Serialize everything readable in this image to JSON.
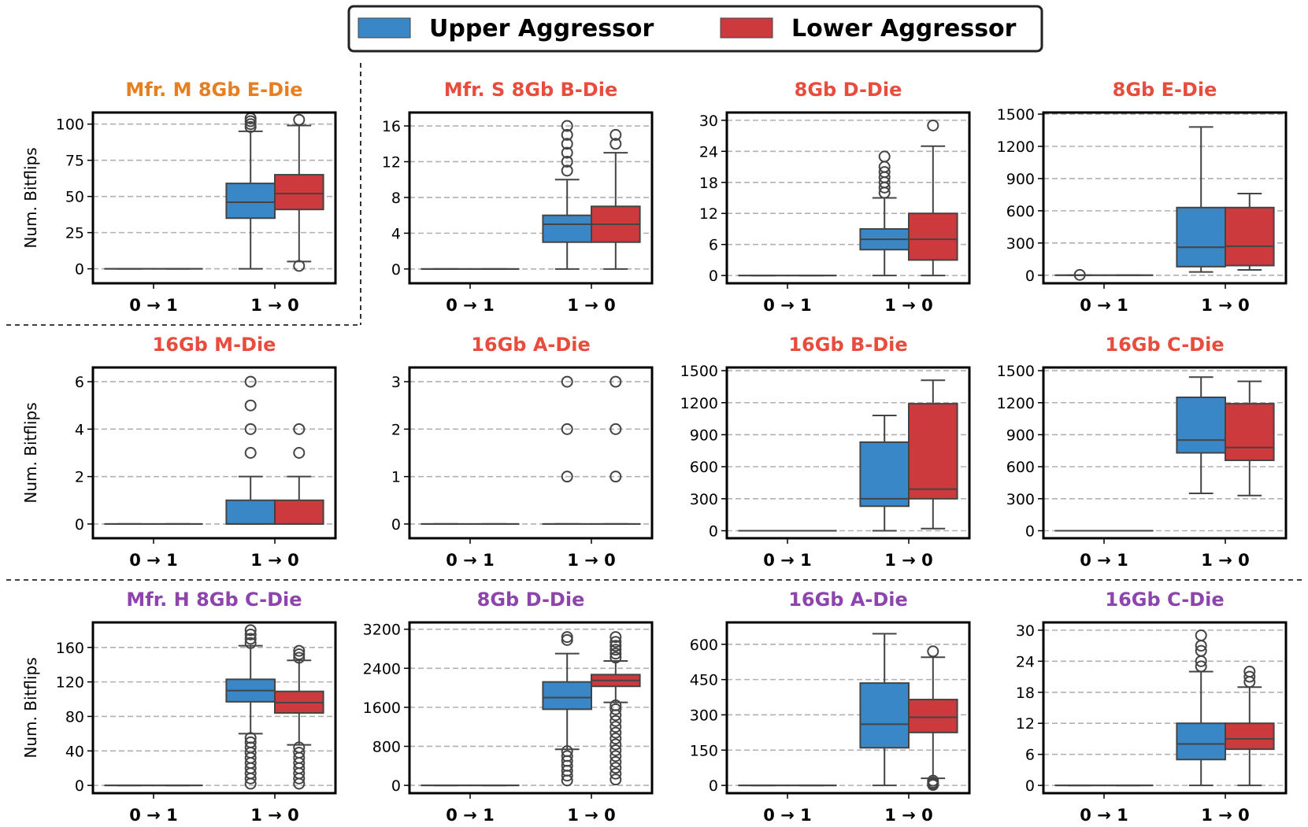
{
  "chart_data": [
    {
      "type": "box",
      "title": "Mfr. M 8Gb E-Die",
      "title_color": "#e67e22",
      "ylabel": "Num. Bitflips",
      "ylim": [
        -10,
        108
      ],
      "yticks": [
        0,
        25,
        50,
        75,
        100
      ],
      "categories": [
        "0 → 1",
        "1 → 0"
      ],
      "series": [
        {
          "name": "Upper Aggressor",
          "boxes": [
            {
              "min": 0,
              "q1": 0,
              "median": 0,
              "q3": 0,
              "max": 0,
              "outliers": []
            },
            {
              "min": 0,
              "q1": 35,
              "median": 46,
              "q3": 59,
              "max": 95,
              "outliers": [
                98,
                100,
                102,
                104
              ]
            }
          ]
        },
        {
          "name": "Lower Aggressor",
          "boxes": [
            {
              "min": 0,
              "q1": 0,
              "median": 0,
              "q3": 0,
              "max": 0,
              "outliers": []
            },
            {
              "min": 5,
              "q1": 41,
              "median": 52,
              "q3": 65,
              "max": 99,
              "outliers": [
                2,
                103
              ]
            }
          ]
        }
      ]
    },
    {
      "type": "box",
      "title": "Mfr. S 8Gb B-Die",
      "title_color": "#e74c3c",
      "ylabel": "",
      "ylim": [
        -1.6,
        17.5
      ],
      "yticks": [
        0,
        4,
        8,
        12,
        16
      ],
      "categories": [
        "0 → 1",
        "1 → 0"
      ],
      "series": [
        {
          "name": "Upper Aggressor",
          "boxes": [
            {
              "min": 0,
              "q1": 0,
              "median": 0,
              "q3": 0,
              "max": 0,
              "outliers": []
            },
            {
              "min": 0,
              "q1": 3,
              "median": 5,
              "q3": 6,
              "max": 10,
              "outliers": [
                11,
                12,
                13,
                14,
                15,
                16
              ]
            }
          ]
        },
        {
          "name": "Lower Aggressor",
          "boxes": [
            {
              "min": 0,
              "q1": 0,
              "median": 0,
              "q3": 0,
              "max": 0,
              "outliers": []
            },
            {
              "min": 0,
              "q1": 3,
              "median": 5,
              "q3": 7,
              "max": 13,
              "outliers": [
                14,
                15
              ]
            }
          ]
        }
      ]
    },
    {
      "type": "box",
      "title": "8Gb D-Die",
      "title_color": "#e74c3c",
      "ylabel": "",
      "ylim": [
        -1.5,
        31.5
      ],
      "yticks": [
        0,
        6,
        12,
        18,
        24,
        30
      ],
      "categories": [
        "0 → 1",
        "1 → 0"
      ],
      "series": [
        {
          "name": "Upper Aggressor",
          "boxes": [
            {
              "min": 0,
              "q1": 0,
              "median": 0,
              "q3": 0,
              "max": 0,
              "outliers": []
            },
            {
              "min": 0,
              "q1": 5,
              "median": 7,
              "q3": 9,
              "max": 15,
              "outliers": [
                16,
                17,
                18,
                19,
                20,
                21,
                23
              ]
            }
          ]
        },
        {
          "name": "Lower Aggressor",
          "boxes": [
            {
              "min": 0,
              "q1": 0,
              "median": 0,
              "q3": 0,
              "max": 0,
              "outliers": []
            },
            {
              "min": 0,
              "q1": 3,
              "median": 7,
              "q3": 12,
              "max": 25,
              "outliers": [
                29
              ]
            }
          ]
        }
      ]
    },
    {
      "type": "box",
      "title": "8Gb E-Die",
      "title_color": "#e74c3c",
      "ylabel": "",
      "ylim": [
        -75,
        1515
      ],
      "yticks": [
        0,
        300,
        600,
        900,
        1200,
        1500
      ],
      "categories": [
        "0 → 1",
        "1 → 0"
      ],
      "series": [
        {
          "name": "Upper Aggressor",
          "boxes": [
            {
              "min": 0,
              "q1": 0,
              "median": 0,
              "q3": 0,
              "max": 0,
              "outliers": [
                3
              ]
            },
            {
              "min": 30,
              "q1": 80,
              "median": 260,
              "q3": 630,
              "max": 1380,
              "outliers": []
            }
          ]
        },
        {
          "name": "Lower Aggressor",
          "boxes": [
            {
              "min": 0,
              "q1": 0,
              "median": 0,
              "q3": 0,
              "max": 0,
              "outliers": []
            },
            {
              "min": 50,
              "q1": 90,
              "median": 270,
              "q3": 630,
              "max": 760,
              "outliers": []
            }
          ]
        }
      ]
    },
    {
      "type": "box",
      "title": "16Gb M-Die",
      "title_color": "#e74c3c",
      "ylabel": "Num. Bitflips",
      "ylim": [
        -0.6,
        6.6
      ],
      "yticks": [
        0,
        2,
        4,
        6
      ],
      "categories": [
        "0 → 1",
        "1 → 0"
      ],
      "series": [
        {
          "name": "Upper Aggressor",
          "boxes": [
            {
              "min": 0,
              "q1": 0,
              "median": 0,
              "q3": 0,
              "max": 0,
              "outliers": []
            },
            {
              "min": 0,
              "q1": 0,
              "median": 0,
              "q3": 1,
              "max": 2,
              "outliers": [
                3,
                4,
                5,
                6
              ]
            }
          ]
        },
        {
          "name": "Lower Aggressor",
          "boxes": [
            {
              "min": 0,
              "q1": 0,
              "median": 0,
              "q3": 0,
              "max": 0,
              "outliers": []
            },
            {
              "min": 0,
              "q1": 0,
              "median": 0,
              "q3": 1,
              "max": 2,
              "outliers": [
                3,
                4
              ]
            }
          ]
        }
      ]
    },
    {
      "type": "box",
      "title": "16Gb A-Die",
      "title_color": "#e74c3c",
      "ylabel": "",
      "ylim": [
        -0.3,
        3.3
      ],
      "yticks": [
        0,
        1,
        2,
        3
      ],
      "categories": [
        "0 → 1",
        "1 → 0"
      ],
      "series": [
        {
          "name": "Upper Aggressor",
          "boxes": [
            {
              "min": 0,
              "q1": 0,
              "median": 0,
              "q3": 0,
              "max": 0,
              "outliers": []
            },
            {
              "min": 0,
              "q1": 0,
              "median": 0,
              "q3": 0,
              "max": 0,
              "outliers": [
                1,
                2,
                3
              ]
            }
          ]
        },
        {
          "name": "Lower Aggressor",
          "boxes": [
            {
              "min": 0,
              "q1": 0,
              "median": 0,
              "q3": 0,
              "max": 0,
              "outliers": []
            },
            {
              "min": 0,
              "q1": 0,
              "median": 0,
              "q3": 0,
              "max": 0,
              "outliers": [
                1,
                2,
                3
              ]
            }
          ]
        }
      ]
    },
    {
      "type": "box",
      "title": "16Gb B-Die",
      "title_color": "#e74c3c",
      "ylabel": "",
      "ylim": [
        -70,
        1530
      ],
      "yticks": [
        0,
        300,
        600,
        900,
        1200,
        1500
      ],
      "categories": [
        "0 → 1",
        "1 → 0"
      ],
      "series": [
        {
          "name": "Upper Aggressor",
          "boxes": [
            {
              "min": 0,
              "q1": 0,
              "median": 0,
              "q3": 0,
              "max": 0,
              "outliers": []
            },
            {
              "min": 0,
              "q1": 230,
              "median": 300,
              "q3": 830,
              "max": 1080,
              "outliers": []
            }
          ]
        },
        {
          "name": "Lower Aggressor",
          "boxes": [
            {
              "min": 0,
              "q1": 0,
              "median": 0,
              "q3": 0,
              "max": 0,
              "outliers": []
            },
            {
              "min": 20,
              "q1": 300,
              "median": 390,
              "q3": 1190,
              "max": 1410,
              "outliers": []
            }
          ]
        }
      ]
    },
    {
      "type": "box",
      "title": "16Gb C-Die",
      "title_color": "#e74c3c",
      "ylabel": "",
      "ylim": [
        -70,
        1530
      ],
      "yticks": [
        0,
        300,
        600,
        900,
        1200,
        1500
      ],
      "categories": [
        "0 → 1",
        "1 → 0"
      ],
      "series": [
        {
          "name": "Upper Aggressor",
          "boxes": [
            {
              "min": 0,
              "q1": 0,
              "median": 0,
              "q3": 0,
              "max": 0,
              "outliers": []
            },
            {
              "min": 350,
              "q1": 730,
              "median": 850,
              "q3": 1250,
              "max": 1440,
              "outliers": []
            }
          ]
        },
        {
          "name": "Lower Aggressor",
          "boxes": [
            {
              "min": 0,
              "q1": 0,
              "median": 0,
              "q3": 0,
              "max": 0,
              "outliers": []
            },
            {
              "min": 330,
              "q1": 660,
              "median": 780,
              "q3": 1190,
              "max": 1400,
              "outliers": []
            }
          ]
        }
      ]
    },
    {
      "type": "box",
      "title": "Mfr. H 8Gb C-Die",
      "title_color": "#8e44ad",
      "ylabel": "Num. Bitflips",
      "ylim": [
        -9,
        189
      ],
      "yticks": [
        0,
        40,
        80,
        120,
        160
      ],
      "categories": [
        "0 → 1",
        "1 → 0"
      ],
      "series": [
        {
          "name": "Upper Aggressor",
          "boxes": [
            {
              "min": 0,
              "q1": 0,
              "median": 0,
              "q3": 0,
              "max": 0,
              "outliers": []
            },
            {
              "min": 60,
              "q1": 97,
              "median": 110,
              "q3": 123,
              "max": 162,
              "outliers": [
                2,
                8,
                14,
                20,
                26,
                32,
                38,
                44,
                50,
                55,
                165,
                170,
                175,
                180
              ]
            }
          ]
        },
        {
          "name": "Lower Aggressor",
          "boxes": [
            {
              "min": 0,
              "q1": 0,
              "median": 0,
              "q3": 0,
              "max": 0,
              "outliers": []
            },
            {
              "min": 47,
              "q1": 84,
              "median": 96,
              "q3": 109,
              "max": 145,
              "outliers": [
                2,
                8,
                14,
                20,
                26,
                32,
                38,
                44,
                148,
                152,
                156
              ]
            }
          ]
        }
      ]
    },
    {
      "type": "box",
      "title": "8Gb D-Die",
      "title_color": "#8e44ad",
      "ylabel": "",
      "ylim": [
        -160,
        3340
      ],
      "yticks": [
        0,
        800,
        1600,
        2400,
        3200
      ],
      "categories": [
        "0 → 1",
        "1 → 0"
      ],
      "series": [
        {
          "name": "Upper Aggressor",
          "boxes": [
            {
              "min": 0,
              "q1": 0,
              "median": 0,
              "q3": 0,
              "max": 0,
              "outliers": []
            },
            {
              "min": 740,
              "q1": 1560,
              "median": 1800,
              "q3": 2120,
              "max": 2700,
              "outliers": [
                100,
                200,
                300,
                400,
                500,
                600,
                700,
                2980,
                3040
              ]
            }
          ]
        },
        {
          "name": "Lower Aggressor",
          "boxes": [
            {
              "min": 0,
              "q1": 0,
              "median": 0,
              "q3": 0,
              "max": 0,
              "outliers": []
            },
            {
              "min": 1700,
              "q1": 2030,
              "median": 2150,
              "q3": 2270,
              "max": 2550,
              "outliers": [
                120,
                240,
                360,
                480,
                600,
                720,
                840,
                960,
                1080,
                1200,
                1320,
                1440,
                1560,
                1640,
                2620,
                2700,
                2780,
                2860,
                2940,
                3040
              ]
            }
          ]
        }
      ]
    },
    {
      "type": "box",
      "title": "16Gb A-Die",
      "title_color": "#8e44ad",
      "ylabel": "",
      "ylim": [
        -33,
        693
      ],
      "yticks": [
        0,
        150,
        300,
        450,
        600
      ],
      "categories": [
        "0 → 1",
        "1 → 0"
      ],
      "series": [
        {
          "name": "Upper Aggressor",
          "boxes": [
            {
              "min": 0,
              "q1": 0,
              "median": 0,
              "q3": 0,
              "max": 0,
              "outliers": []
            },
            {
              "min": 0,
              "q1": 160,
              "median": 260,
              "q3": 435,
              "max": 645,
              "outliers": []
            }
          ]
        },
        {
          "name": "Lower Aggressor",
          "boxes": [
            {
              "min": 0,
              "q1": 0,
              "median": 0,
              "q3": 0,
              "max": 0,
              "outliers": []
            },
            {
              "min": 30,
              "q1": 225,
              "median": 290,
              "q3": 365,
              "max": 545,
              "outliers": [
                2,
                6,
                12,
                20,
                570
              ]
            }
          ]
        }
      ]
    },
    {
      "type": "box",
      "title": "16Gb C-Die",
      "title_color": "#8e44ad",
      "ylabel": "",
      "ylim": [
        -1.5,
        31.5
      ],
      "yticks": [
        0,
        6,
        12,
        18,
        24,
        30
      ],
      "categories": [
        "0 → 1",
        "1 → 0"
      ],
      "series": [
        {
          "name": "Upper Aggressor",
          "boxes": [
            {
              "min": 0,
              "q1": 0,
              "median": 0,
              "q3": 0,
              "max": 0,
              "outliers": []
            },
            {
              "min": 0,
              "q1": 5,
              "median": 8,
              "q3": 12,
              "max": 22,
              "outliers": [
                23,
                24,
                26,
                27,
                29
              ]
            }
          ]
        },
        {
          "name": "Lower Aggressor",
          "boxes": [
            {
              "min": 0,
              "q1": 0,
              "median": 0,
              "q3": 0,
              "max": 0,
              "outliers": []
            },
            {
              "min": 0,
              "q1": 7,
              "median": 9,
              "q3": 12,
              "max": 19,
              "outliers": [
                20,
                21,
                22
              ]
            }
          ]
        }
      ]
    }
  ],
  "legend": {
    "entries": [
      {
        "label": "Upper Aggressor",
        "color": "#3a87c7"
      },
      {
        "label": "Lower Aggressor",
        "color": "#cd3a3e"
      }
    ]
  },
  "colors": {
    "upper": "#3a87c7",
    "lower": "#cd3a3e",
    "grid": "#b0b0b0",
    "box_edge": "#444444"
  }
}
